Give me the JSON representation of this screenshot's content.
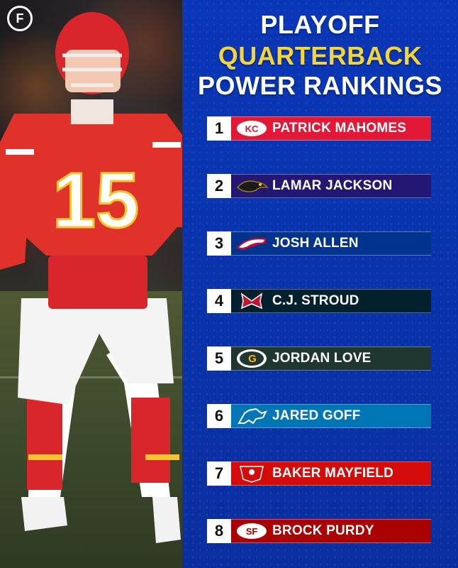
{
  "brand": {
    "logo_text": "F"
  },
  "header": {
    "line1": "PLAYOFF",
    "line2": "QUARTERBACK",
    "line3": "POWER RANKINGS"
  },
  "rankings": [
    {
      "rank": "1",
      "name": "PATRICK MAHOMES",
      "team_icon": "chiefs-icon",
      "color": "#e31837"
    },
    {
      "rank": "2",
      "name": "LAMAR JACKSON",
      "team_icon": "ravens-icon",
      "color": "#241773"
    },
    {
      "rank": "3",
      "name": "JOSH ALLEN",
      "team_icon": "bills-icon",
      "color": "#00338d"
    },
    {
      "rank": "4",
      "name": "C.J. STROUD",
      "team_icon": "texans-icon",
      "color": "#03202f"
    },
    {
      "rank": "5",
      "name": "JORDAN LOVE",
      "team_icon": "packers-icon",
      "color": "#203731"
    },
    {
      "rank": "6",
      "name": "JARED GOFF",
      "team_icon": "lions-icon",
      "color": "#0076b6"
    },
    {
      "rank": "7",
      "name": "BAKER MAYFIELD",
      "team_icon": "buccaneers-icon",
      "color": "#d50a0a"
    },
    {
      "rank": "8",
      "name": "BROCK PURDY",
      "team_icon": "49ers-icon",
      "color": "#aa0000"
    }
  ],
  "player": {
    "jersey_number": "15"
  }
}
